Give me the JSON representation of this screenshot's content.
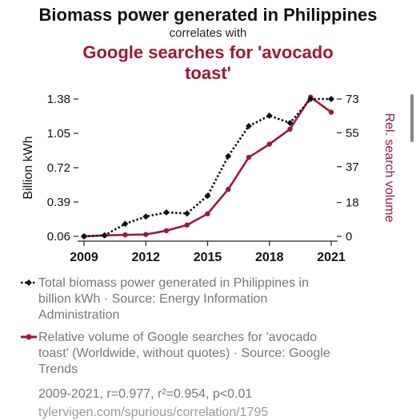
{
  "header": {
    "title": "Biomass power generated in Philippines",
    "subtitle": "correlates with",
    "title2": "Google searches for 'avocado toast'"
  },
  "legend": {
    "series1": "Total biomass power generated in Philippines in billion kWh · Source: Energy Information Administration",
    "series2": "Relative volume of Google searches for 'avocado toast' (Worldwide, without quotes) · Source: Google Trends"
  },
  "stats": "2009-2021, r=0.977, r²=0.954, p<0.01",
  "url": "tylervigen.com/spurious/correlation/1795",
  "colors": {
    "series1": "#111111",
    "series2": "#9b1b30",
    "axis": "#222222"
  },
  "chart_data": {
    "type": "line",
    "x": [
      2009,
      2010,
      2011,
      2012,
      2013,
      2014,
      2015,
      2016,
      2017,
      2018,
      2019,
      2020,
      2021
    ],
    "xticks": [
      "2009",
      "2012",
      "2015",
      "2018",
      "2021"
    ],
    "xlim": [
      2009,
      2021
    ],
    "ylabel": "Billion kWh",
    "y2label": "Rel. search volume",
    "ylim": [
      0.06,
      1.38
    ],
    "yticks": [
      "1.38",
      "1.05",
      "0.72",
      "0.39",
      "0.06"
    ],
    "y2lim": [
      0,
      73
    ],
    "y2ticks": [
      "73",
      "55",
      "37",
      "18",
      "0"
    ],
    "grid": false,
    "series": [
      {
        "axis": "left",
        "style": "dotted-diamond",
        "values": [
          0.06,
          0.07,
          0.18,
          0.25,
          0.29,
          0.28,
          0.45,
          0.83,
          1.12,
          1.22,
          1.15,
          1.38,
          1.38
        ]
      },
      {
        "axis": "right",
        "style": "solid-circle",
        "values": [
          0,
          0.5,
          0.8,
          1,
          3,
          6,
          12,
          25,
          42,
          49,
          57,
          74,
          66
        ]
      }
    ]
  }
}
